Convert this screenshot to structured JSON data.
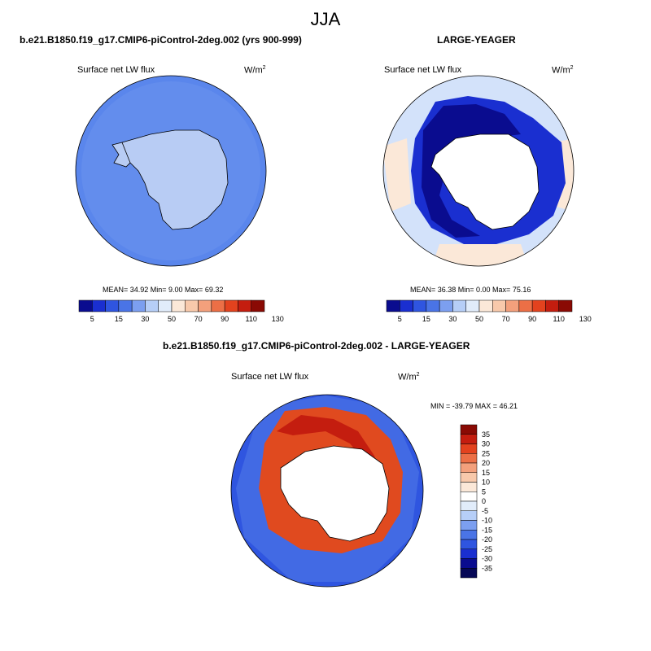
{
  "figure_title": "JJA",
  "panels": {
    "model": {
      "title": "b.e21.B1850.f19_g17.CMIP6-piControl-2deg.002 (yrs 900-999)",
      "variable": "Surface net LW flux",
      "units": "W/m",
      "units_exp": "2",
      "stats": "MEAN=  34.92  Min=   9.00  Max=  69.32"
    },
    "obs": {
      "title": "LARGE-YEAGER",
      "variable": "Surface net LW flux",
      "units": "W/m",
      "units_exp": "2",
      "stats": "MEAN=  36.38  Min=   0.00  Max=  75.16"
    },
    "diff": {
      "title": "b.e21.B1850.f19_g17.CMIP6-piControl-2deg.002 - LARGE-YEAGER",
      "variable": "Surface net LW flux",
      "units": "W/m",
      "units_exp": "2",
      "stats": "MIN = -39.79 MAX =  46.21"
    }
  },
  "colorbar_abs": {
    "labels": [
      "5",
      "15",
      "30",
      "50",
      "70",
      "90",
      "110",
      "130"
    ],
    "colors": [
      "#0a0c8f",
      "#1a2fd0",
      "#2f55e0",
      "#4a74e6",
      "#7c9ff0",
      "#b6cef7",
      "#e1ecfa",
      "#fbe8d8",
      "#f8c9ab",
      "#f3a07c",
      "#ec6f46",
      "#e3421e",
      "#c41d0f",
      "#8a0a04"
    ]
  },
  "colorbar_diff": {
    "labels": [
      "35",
      "30",
      "25",
      "20",
      "15",
      "10",
      "5",
      "0",
      "-5",
      "-10",
      "-15",
      "-20",
      "-25",
      "-30",
      "-35"
    ],
    "colors": [
      "#8a0a04",
      "#c41d0f",
      "#e3421e",
      "#ec6f46",
      "#f3a07c",
      "#f8c9ab",
      "#fbe8d8",
      "#ffffff",
      "#e1ecfa",
      "#b6cef7",
      "#7c9ff0",
      "#4a74e6",
      "#2f55e0",
      "#1a2fd0",
      "#0a0c8f",
      "#060856"
    ]
  },
  "map_colors": {
    "ocean_model": "#5a86ec",
    "ice_model": "#b8ccf4",
    "land_mask": "#ffffff",
    "ring_dark_blue": "#0e1faa",
    "ring_red": "#e04a1f",
    "ocean_cream": "#fbe8d8",
    "ocean_light": "#d3e2fa"
  }
}
